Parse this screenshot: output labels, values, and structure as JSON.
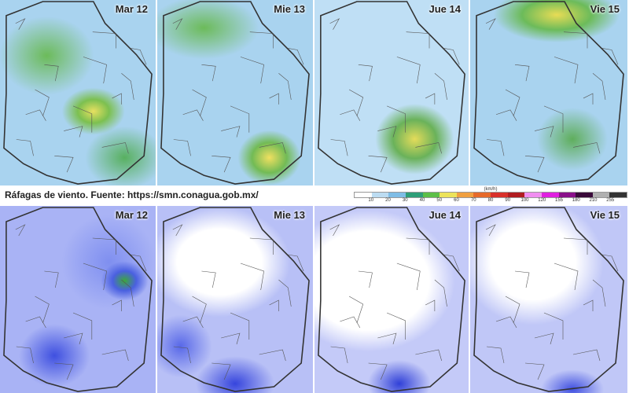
{
  "top_row": {
    "panels": [
      {
        "day": "Mar 12"
      },
      {
        "day": "Mie 13"
      },
      {
        "day": "Jue 14"
      },
      {
        "day": "Vie 15"
      }
    ]
  },
  "bottom_row": {
    "panels": [
      {
        "day": "Mar 12"
      },
      {
        "day": "Mie 13"
      },
      {
        "day": "Jue 14"
      },
      {
        "day": "Vie 15"
      }
    ]
  },
  "caption": "Ráfagas de viento.  Fuente: https://smn.conagua.gob.mx/",
  "legend": {
    "unit": "(km/h)",
    "ticks": [
      "10",
      "20",
      "30",
      "40",
      "50",
      "60",
      "70",
      "80",
      "90",
      "100",
      "120",
      "155",
      "180",
      "210",
      "255"
    ],
    "colors": [
      "#ffffff",
      "#bcdcf2",
      "#7fbde6",
      "#2e9e78",
      "#5cbf48",
      "#ece35a",
      "#f0a040",
      "#e66a2a",
      "#d8302a",
      "#b01c20",
      "#f08ef0",
      "#e020e0",
      "#8a108a",
      "#3a0a3a",
      "#b0b0b0",
      "#333333"
    ]
  }
}
